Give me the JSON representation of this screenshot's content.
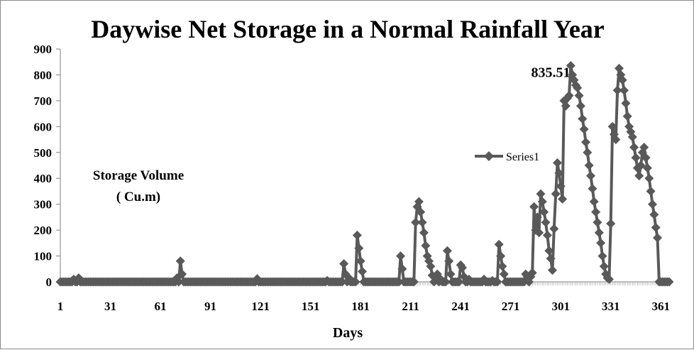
{
  "chart_data": {
    "type": "line",
    "title": "Daywise Net Storage in a Normal Rainfall Year",
    "xlabel": "Days",
    "ylabel": "Storage Volume ( Cu.m)",
    "ylabel_lines": [
      "Storage Volume",
      "( Cu.m)"
    ],
    "xlim": [
      1,
      366
    ],
    "ylim": [
      0,
      900
    ],
    "yticks": [
      0,
      100,
      200,
      300,
      400,
      500,
      600,
      700,
      800,
      900
    ],
    "xticks": [
      1,
      31,
      61,
      91,
      121,
      151,
      181,
      211,
      241,
      271,
      301,
      331,
      361
    ],
    "grid": false,
    "legend_position": "center-right",
    "annotation": {
      "text": "835.51",
      "x": 316,
      "y": 835.51
    },
    "series": [
      {
        "name": "Series1",
        "color": "#595959",
        "marker": "diamond",
        "baseline": 0,
        "points": [
          [
            1,
            0
          ],
          [
            5,
            0
          ],
          [
            9,
            10
          ],
          [
            10,
            0
          ],
          [
            12,
            15
          ],
          [
            13,
            0
          ],
          [
            68,
            0
          ],
          [
            71,
            15
          ],
          [
            73,
            80
          ],
          [
            74,
            30
          ],
          [
            75,
            0
          ],
          [
            118,
            0
          ],
          [
            119,
            12
          ],
          [
            120,
            0
          ],
          [
            160,
            0
          ],
          [
            161,
            5
          ],
          [
            162,
            0
          ],
          [
            170,
            0
          ],
          [
            171,
            70
          ],
          [
            172,
            30
          ],
          [
            173,
            0
          ],
          [
            174,
            15
          ],
          [
            175,
            0
          ],
          [
            178,
            0
          ],
          [
            179,
            180
          ],
          [
            180,
            130
          ],
          [
            181,
            80
          ],
          [
            182,
            40
          ],
          [
            183,
            0
          ],
          [
            204,
            0
          ],
          [
            205,
            100
          ],
          [
            206,
            50
          ],
          [
            207,
            0
          ],
          [
            213,
            0
          ],
          [
            214,
            230
          ],
          [
            215,
            290
          ],
          [
            216,
            310
          ],
          [
            217,
            270
          ],
          [
            218,
            230
          ],
          [
            219,
            190
          ],
          [
            220,
            140
          ],
          [
            221,
            100
          ],
          [
            222,
            80
          ],
          [
            223,
            60
          ],
          [
            224,
            25
          ],
          [
            225,
            0
          ],
          [
            226,
            20
          ],
          [
            227,
            30
          ],
          [
            228,
            0
          ],
          [
            229,
            10
          ],
          [
            230,
            0
          ],
          [
            232,
            0
          ],
          [
            233,
            120
          ],
          [
            234,
            80
          ],
          [
            235,
            30
          ],
          [
            236,
            0
          ],
          [
            240,
            0
          ],
          [
            241,
            65
          ],
          [
            242,
            55
          ],
          [
            243,
            20
          ],
          [
            244,
            0
          ],
          [
            246,
            10
          ],
          [
            247,
            0
          ],
          [
            254,
            0
          ],
          [
            255,
            10
          ],
          [
            256,
            0
          ],
          [
            259,
            0
          ],
          [
            260,
            5
          ],
          [
            261,
            0
          ],
          [
            263,
            0
          ],
          [
            264,
            145
          ],
          [
            265,
            100
          ],
          [
            266,
            60
          ],
          [
            267,
            30
          ],
          [
            268,
            0
          ],
          [
            279,
            0
          ],
          [
            280,
            30
          ],
          [
            281,
            20
          ],
          [
            282,
            0
          ],
          [
            283,
            20
          ],
          [
            284,
            35
          ],
          [
            285,
            290
          ],
          [
            286,
            200
          ],
          [
            287,
            250
          ],
          [
            288,
            190
          ],
          [
            289,
            340
          ],
          [
            290,
            310
          ],
          [
            291,
            270
          ],
          [
            292,
            230
          ],
          [
            293,
            180
          ],
          [
            294,
            120
          ],
          [
            295,
            90
          ],
          [
            296,
            45
          ],
          [
            297,
            205
          ],
          [
            298,
            340
          ],
          [
            299,
            460
          ],
          [
            300,
            420
          ],
          [
            301,
            370
          ],
          [
            302,
            320
          ],
          [
            303,
            700
          ],
          [
            304,
            680
          ],
          [
            305,
            710
          ],
          [
            306,
            720
          ],
          [
            307,
            835.51
          ],
          [
            308,
            800
          ],
          [
            309,
            780
          ],
          [
            310,
            760
          ],
          [
            311,
            750
          ],
          [
            312,
            720
          ],
          [
            313,
            680
          ],
          [
            314,
            630
          ],
          [
            315,
            590
          ],
          [
            316,
            540
          ],
          [
            317,
            500
          ],
          [
            318,
            450
          ],
          [
            319,
            410
          ],
          [
            320,
            360
          ],
          [
            321,
            310
          ],
          [
            322,
            270
          ],
          [
            323,
            230
          ],
          [
            324,
            190
          ],
          [
            325,
            150
          ],
          [
            326,
            100
          ],
          [
            327,
            60
          ],
          [
            328,
            30
          ],
          [
            329,
            15
          ],
          [
            330,
            10
          ],
          [
            331,
            225
          ],
          [
            332,
            600
          ],
          [
            333,
            570
          ],
          [
            334,
            550
          ],
          [
            335,
            740
          ],
          [
            336,
            825
          ],
          [
            337,
            800
          ],
          [
            338,
            780
          ],
          [
            339,
            740
          ],
          [
            340,
            690
          ],
          [
            341,
            640
          ],
          [
            342,
            600
          ],
          [
            343,
            580
          ],
          [
            344,
            560
          ],
          [
            345,
            520
          ],
          [
            346,
            480
          ],
          [
            347,
            440
          ],
          [
            348,
            410
          ],
          [
            349,
            450
          ],
          [
            350,
            500
          ],
          [
            351,
            520
          ],
          [
            352,
            480
          ],
          [
            353,
            440
          ],
          [
            354,
            400
          ],
          [
            355,
            350
          ],
          [
            356,
            300
          ],
          [
            357,
            260
          ],
          [
            358,
            210
          ],
          [
            359,
            170
          ]
        ]
      }
    ]
  }
}
